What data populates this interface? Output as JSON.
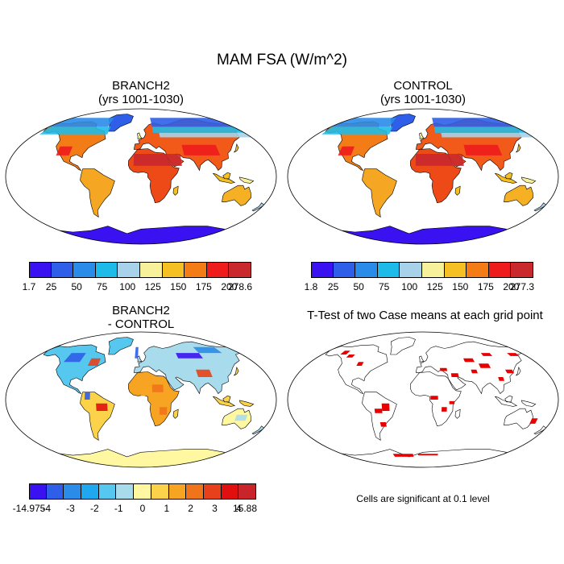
{
  "figure_title": "MAM FSA (W/m^2)",
  "panels": {
    "branch2": {
      "title_line1": "BRANCH2",
      "title_line2": "(yrs 1001-1030)"
    },
    "control": {
      "title_line1": "CONTROL",
      "title_line2": "(yrs 1001-1030)"
    },
    "diff": {
      "title_line1": "BRANCH2",
      "title_line2": "- CONTROL"
    },
    "ttest": {
      "title": "T-Test of two Case means at each grid point"
    }
  },
  "colorbars": {
    "branch2": {
      "colors": [
        "#3a12f2",
        "#2f5ee8",
        "#2a8be8",
        "#1fbbe8",
        "#a7d2ea",
        "#f6f19a",
        "#f5c023",
        "#f47c17",
        "#ee1c1c",
        "#c9282d"
      ],
      "ticks": [
        "1.7",
        "25",
        "50",
        "75",
        "100",
        "125",
        "150",
        "175",
        "200",
        "278.6"
      ]
    },
    "control": {
      "colors": [
        "#3a12f2",
        "#2f5ee8",
        "#2a8be8",
        "#1fbbe8",
        "#a7d2ea",
        "#f6f19a",
        "#f5c023",
        "#f47c17",
        "#ee1c1c",
        "#c9282d"
      ],
      "ticks": [
        "1.8",
        "25",
        "50",
        "75",
        "100",
        "125",
        "150",
        "175",
        "200",
        "277.3"
      ]
    },
    "diff": {
      "colors": [
        "#3a12f2",
        "#2f5ee8",
        "#2a8be8",
        "#1fa8ef",
        "#56c8ef",
        "#a8dcec",
        "#fff8a0",
        "#fbd24a",
        "#f8a423",
        "#f07419",
        "#e8401a",
        "#e01010",
        "#c8242a"
      ],
      "ticks": [
        "-14.975",
        "-4",
        "-3",
        "-2",
        "-1",
        "0",
        "1",
        "2",
        "3",
        "4",
        "15.88"
      ]
    }
  },
  "significance_note": "Cells are significant at 0.1 level"
}
